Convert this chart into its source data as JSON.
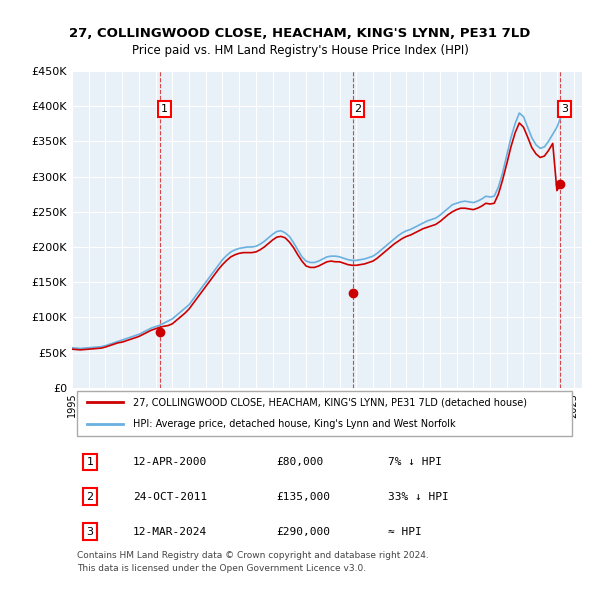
{
  "title": "27, COLLINGWOOD CLOSE, HEACHAM, KING'S LYNN, PE31 7LD",
  "subtitle": "Price paid vs. HM Land Registry's House Price Index (HPI)",
  "hpi_color": "#6ab0e0",
  "price_color": "#cc0000",
  "background_color": "#e8f0f8",
  "ylim": [
    0,
    450000
  ],
  "yticks": [
    0,
    50000,
    100000,
    150000,
    200000,
    250000,
    300000,
    350000,
    400000,
    450000
  ],
  "ytick_labels": [
    "£0",
    "£50K",
    "£100K",
    "£150K",
    "£200K",
    "£250K",
    "£300K",
    "£350K",
    "£400K",
    "£450K"
  ],
  "xlim_start": 1995.0,
  "xlim_end": 2025.5,
  "xtick_years": [
    1995,
    1996,
    1997,
    1998,
    1999,
    2000,
    2001,
    2002,
    2003,
    2004,
    2005,
    2006,
    2007,
    2008,
    2009,
    2010,
    2011,
    2012,
    2013,
    2014,
    2015,
    2016,
    2017,
    2018,
    2019,
    2020,
    2021,
    2022,
    2023,
    2024,
    2025
  ],
  "sale_dates": [
    2000.28,
    2011.81,
    2024.19
  ],
  "sale_prices": [
    80000,
    135000,
    290000
  ],
  "sale_labels": [
    "1",
    "2",
    "3"
  ],
  "legend_price_label": "27, COLLINGWOOD CLOSE, HEACHAM, KING'S LYNN, PE31 7LD (detached house)",
  "legend_hpi_label": "HPI: Average price, detached house, King's Lynn and West Norfolk",
  "table_data": [
    [
      "1",
      "12-APR-2000",
      "£80,000",
      "7% ↓ HPI"
    ],
    [
      "2",
      "24-OCT-2011",
      "£135,000",
      "33% ↓ HPI"
    ],
    [
      "3",
      "12-MAR-2024",
      "£290,000",
      "≈ HPI"
    ]
  ],
  "footer": "Contains HM Land Registry data © Crown copyright and database right 2024.\nThis data is licensed under the Open Government Licence v3.0.",
  "hpi_x": [
    1995.0,
    1995.25,
    1995.5,
    1995.75,
    1996.0,
    1996.25,
    1996.5,
    1996.75,
    1997.0,
    1997.25,
    1997.5,
    1997.75,
    1998.0,
    1998.25,
    1998.5,
    1998.75,
    1999.0,
    1999.25,
    1999.5,
    1999.75,
    2000.0,
    2000.25,
    2000.5,
    2000.75,
    2001.0,
    2001.25,
    2001.5,
    2001.75,
    2002.0,
    2002.25,
    2002.5,
    2002.75,
    2003.0,
    2003.25,
    2003.5,
    2003.75,
    2004.0,
    2004.25,
    2004.5,
    2004.75,
    2005.0,
    2005.25,
    2005.5,
    2005.75,
    2006.0,
    2006.25,
    2006.5,
    2006.75,
    2007.0,
    2007.25,
    2007.5,
    2007.75,
    2008.0,
    2008.25,
    2008.5,
    2008.75,
    2009.0,
    2009.25,
    2009.5,
    2009.75,
    2010.0,
    2010.25,
    2010.5,
    2010.75,
    2011.0,
    2011.25,
    2011.5,
    2011.75,
    2012.0,
    2012.25,
    2012.5,
    2012.75,
    2013.0,
    2013.25,
    2013.5,
    2013.75,
    2014.0,
    2014.25,
    2014.5,
    2014.75,
    2015.0,
    2015.25,
    2015.5,
    2015.75,
    2016.0,
    2016.25,
    2016.5,
    2016.75,
    2017.0,
    2017.25,
    2017.5,
    2017.75,
    2018.0,
    2018.25,
    2018.5,
    2018.75,
    2019.0,
    2019.25,
    2019.5,
    2019.75,
    2020.0,
    2020.25,
    2020.5,
    2020.75,
    2021.0,
    2021.25,
    2021.5,
    2021.75,
    2022.0,
    2022.25,
    2022.5,
    2022.75,
    2023.0,
    2023.25,
    2023.5,
    2023.75,
    2024.0,
    2024.25
  ],
  "hpi_y": [
    57000,
    56500,
    56000,
    56500,
    57000,
    57500,
    58000,
    58500,
    60000,
    62000,
    64000,
    66000,
    68000,
    70000,
    72000,
    74000,
    76000,
    79000,
    82000,
    85000,
    87000,
    89000,
    92000,
    95000,
    98000,
    103000,
    108000,
    113000,
    118000,
    126000,
    134000,
    142000,
    150000,
    158000,
    166000,
    174000,
    182000,
    188000,
    193000,
    196000,
    198000,
    199000,
    200000,
    200000,
    201000,
    204000,
    208000,
    213000,
    218000,
    222000,
    223000,
    220000,
    215000,
    206000,
    196000,
    186000,
    180000,
    178000,
    178000,
    180000,
    183000,
    186000,
    187000,
    187000,
    186000,
    184000,
    182000,
    181000,
    181000,
    182000,
    183000,
    185000,
    187000,
    191000,
    196000,
    201000,
    206000,
    211000,
    216000,
    220000,
    223000,
    225000,
    228000,
    231000,
    234000,
    237000,
    239000,
    241000,
    245000,
    250000,
    255000,
    260000,
    262000,
    264000,
    265000,
    264000,
    263000,
    265000,
    268000,
    272000,
    271000,
    272000,
    285000,
    305000,
    330000,
    355000,
    375000,
    390000,
    385000,
    370000,
    355000,
    345000,
    340000,
    342000,
    350000,
    360000,
    370000,
    385000
  ],
  "price_x": [
    1995.0,
    1995.25,
    1995.5,
    1995.75,
    1996.0,
    1996.25,
    1996.5,
    1996.75,
    1997.0,
    1997.25,
    1997.5,
    1997.75,
    1998.0,
    1998.25,
    1998.5,
    1998.75,
    1999.0,
    1999.25,
    1999.5,
    1999.75,
    2000.0,
    2000.25,
    2000.5,
    2000.75,
    2001.0,
    2001.25,
    2001.5,
    2001.75,
    2002.0,
    2002.25,
    2002.5,
    2002.75,
    2003.0,
    2003.25,
    2003.5,
    2003.75,
    2004.0,
    2004.25,
    2004.5,
    2004.75,
    2005.0,
    2005.25,
    2005.5,
    2005.75,
    2006.0,
    2006.25,
    2006.5,
    2006.75,
    2007.0,
    2007.25,
    2007.5,
    2007.75,
    2008.0,
    2008.25,
    2008.5,
    2008.75,
    2009.0,
    2009.25,
    2009.5,
    2009.75,
    2010.0,
    2010.25,
    2010.5,
    2010.75,
    2011.0,
    2011.25,
    2011.5,
    2011.75,
    2012.0,
    2012.25,
    2012.5,
    2012.75,
    2013.0,
    2013.25,
    2013.5,
    2013.75,
    2014.0,
    2014.25,
    2014.5,
    2014.75,
    2015.0,
    2015.25,
    2015.5,
    2015.75,
    2016.0,
    2016.25,
    2016.5,
    2016.75,
    2017.0,
    2017.25,
    2017.5,
    2017.75,
    2018.0,
    2018.25,
    2018.5,
    2018.75,
    2019.0,
    2019.25,
    2019.5,
    2019.75,
    2020.0,
    2020.25,
    2020.5,
    2020.75,
    2021.0,
    2021.25,
    2021.5,
    2021.75,
    2022.0,
    2022.25,
    2022.5,
    2022.75,
    2023.0,
    2023.25,
    2023.5,
    2023.75,
    2024.0,
    2024.25
  ],
  "price_y": [
    55000,
    54500,
    54000,
    54500,
    55000,
    55500,
    56000,
    56500,
    58000,
    60000,
    62000,
    64000,
    65000,
    67000,
    69000,
    71000,
    73000,
    76000,
    79000,
    82000,
    84000,
    86000,
    87500,
    88500,
    91000,
    96000,
    101000,
    106000,
    112000,
    120000,
    128000,
    136000,
    144000,
    152000,
    160000,
    168000,
    175000,
    181000,
    186000,
    189000,
    191000,
    192000,
    192000,
    192000,
    193000,
    196000,
    200000,
    205000,
    210000,
    214000,
    215000,
    213000,
    207000,
    199000,
    189000,
    180000,
    173000,
    171000,
    171000,
    173000,
    176000,
    179000,
    180000,
    179000,
    179000,
    177000,
    175000,
    174000,
    174000,
    175000,
    176000,
    178000,
    180000,
    184000,
    189000,
    194000,
    199000,
    204000,
    208000,
    212000,
    215000,
    217000,
    220000,
    223000,
    226000,
    228000,
    230000,
    232000,
    236000,
    241000,
    246000,
    250000,
    253000,
    255000,
    255000,
    254000,
    253000,
    255000,
    258000,
    262000,
    261000,
    262000,
    275000,
    295000,
    318000,
    342000,
    362000,
    376000,
    370000,
    356000,
    341000,
    332000,
    327000,
    329000,
    337000,
    347000,
    280000,
    290000
  ]
}
